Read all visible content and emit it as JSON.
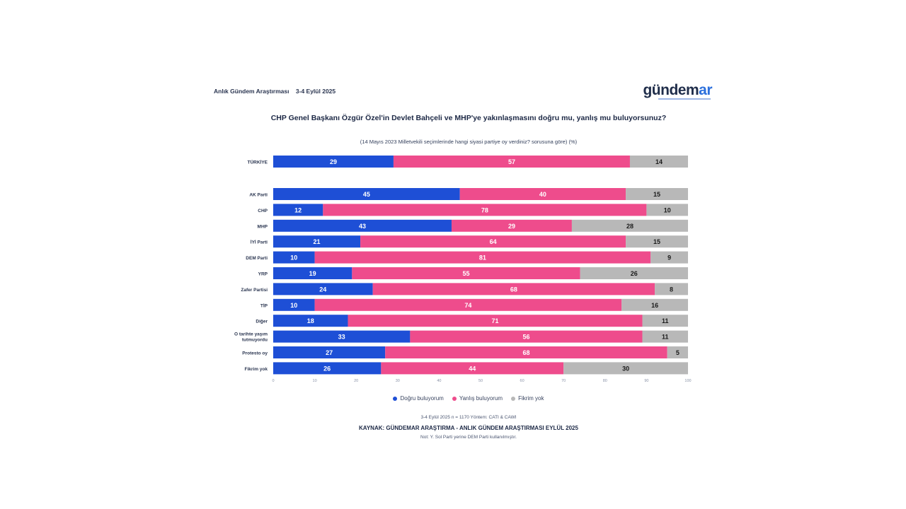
{
  "header": {
    "left_title": "Anlık Gündem Araştırması",
    "date": "3-4 Eylül 2025",
    "logo_part1": "gündem",
    "logo_part2": "ar"
  },
  "colors": {
    "positive": "#1e4fd6",
    "negative": "#ee4c8c",
    "neutral": "#b8b8b8",
    "positive_text": "#ffffff",
    "negative_text": "#ffffff",
    "neutral_text": "#1a1a1a"
  },
  "chart_data": {
    "type": "bar",
    "orientation": "horizontal-stacked-100",
    "title": "CHP Genel Başkanı Özgür Özel'in Devlet Bahçeli ve MHP'ye yakınlaşmasını doğru mu, yanlış mu buluyorsunuz?",
    "subtitle": "(14 Mayıs 2023 Milletvekili seçimlerinde hangi siyasi partiye oy verdiniz? sorusuna göre) (%)",
    "categories": [
      "TÜRKİYE",
      "AK Parti",
      "CHP",
      "MHP",
      "İYİ Parti",
      "DEM Parti",
      "YRP",
      "Zafer Partisi",
      "TİP",
      "Diğer",
      "O tarihte yaşım tutmuyordu",
      "Protesto oy",
      "Fikrim yok"
    ],
    "series": [
      {
        "name": "Doğru buluyorum",
        "values": [
          29,
          45,
          12,
          43,
          21,
          10,
          19,
          24,
          10,
          18,
          33,
          27,
          26
        ]
      },
      {
        "name": "Yanlış buluyorum",
        "values": [
          57,
          40,
          78,
          29,
          64,
          81,
          55,
          68,
          74,
          71,
          56,
          68,
          44
        ]
      },
      {
        "name": "Fikrim yok",
        "values": [
          14,
          15,
          10,
          28,
          15,
          9,
          26,
          8,
          16,
          11,
          11,
          5,
          30
        ]
      }
    ],
    "xlim": [
      0,
      100
    ],
    "xticks": [
      "0",
      "10",
      "20",
      "30",
      "40",
      "50",
      "60",
      "70",
      "80",
      "90",
      "100"
    ],
    "legend_position": "bottom"
  },
  "footer": {
    "method": "3-4 Eylül 2025 n = 1170 Yöntem: CATI & CAWI",
    "source": "KAYNAK: GÜNDEMAR ARAŞTIRMA - ANLIK GÜNDEM ARAŞTIRMASI EYLÜL 2025",
    "note": "Not: Y. Sol Parti yerine DEM Parti kullanılmıştır."
  }
}
